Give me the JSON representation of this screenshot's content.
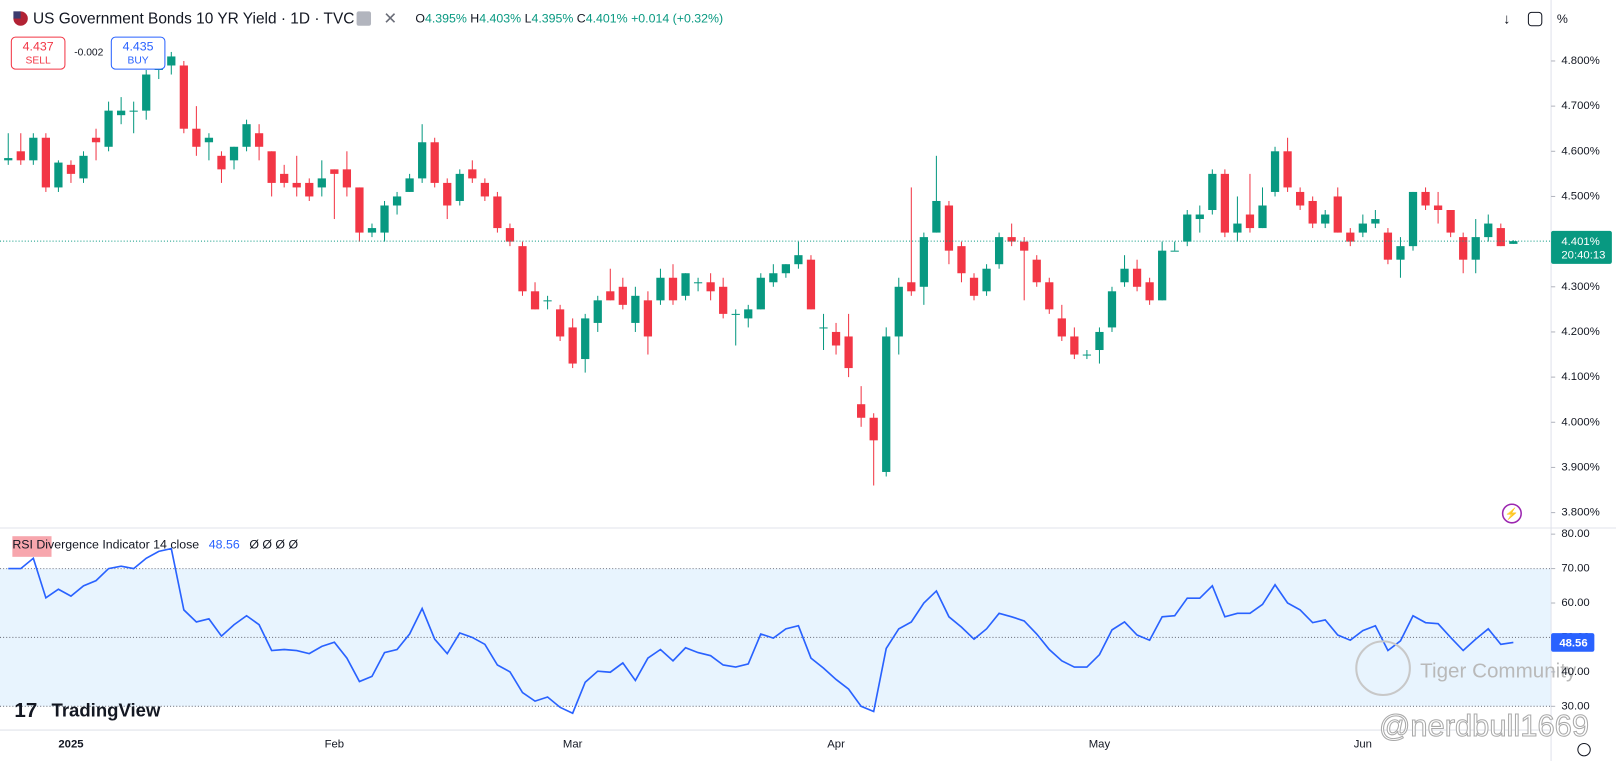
{
  "header": {
    "title": "US Government Bonds 10 YR Yield · 1D · TVC",
    "ohlc": [
      {
        "label": "O",
        "value": "4.395%"
      },
      {
        "label": "H",
        "value": "4.403%"
      },
      {
        "label": "L",
        "value": "4.395%"
      },
      {
        "label": "C",
        "value": "4.401%"
      }
    ],
    "change": "+0.014 (+0.32%)",
    "percent_button": "%"
  },
  "trade": {
    "sell_price": "4.437",
    "sell": "SELL",
    "spread": "-0.002",
    "buy_price": "4.435",
    "buy": "BUY"
  },
  "last_price_label": "4.401%",
  "countdown": "20:40:13",
  "watermarks": {
    "logo": "TradingView",
    "community": "Tiger Community",
    "user": "@nerdbull1669"
  },
  "chart_data": [
    {
      "type": "candlestick",
      "up_color": "#089981",
      "down_color": "#f23645",
      "categories": [
        null,
        null,
        null,
        null,
        null,
        "2025",
        null,
        null,
        null,
        null,
        null,
        null,
        null,
        null,
        null,
        null,
        null,
        null,
        null,
        null,
        null,
        null,
        null,
        null,
        null,
        null,
        "Feb",
        null,
        null,
        null,
        null,
        null,
        null,
        null,
        null,
        null,
        null,
        null,
        null,
        null,
        null,
        null,
        null,
        null,
        null,
        "Mar",
        null,
        null,
        null,
        null,
        null,
        null,
        null,
        null,
        null,
        null,
        null,
        null,
        null,
        null,
        null,
        null,
        null,
        null,
        null,
        null,
        "Apr",
        null,
        null,
        null,
        null,
        null,
        null,
        null,
        null,
        null,
        null,
        null,
        null,
        null,
        null,
        null,
        null,
        null,
        null,
        null,
        null,
        "May",
        null,
        null,
        null,
        null,
        null,
        null,
        null,
        null,
        null,
        null,
        null,
        null,
        null,
        null,
        null,
        null,
        null,
        null,
        null,
        null,
        "Jun",
        null,
        null,
        null,
        null,
        null,
        null,
        null,
        null,
        null,
        null,
        null,
        null
      ],
      "open": [
        4.58,
        4.6,
        4.58,
        4.63,
        4.52,
        4.57,
        4.54,
        4.63,
        4.61,
        4.68,
        4.69,
        4.69,
        4.78,
        4.79,
        4.79,
        4.65,
        4.62,
        4.59,
        4.58,
        4.61,
        4.64,
        4.6,
        4.55,
        4.53,
        4.53,
        4.52,
        4.56,
        4.56,
        4.52,
        4.42,
        4.42,
        4.48,
        4.51,
        4.54,
        4.62,
        4.53,
        4.49,
        4.56,
        4.53,
        4.5,
        4.43,
        4.39,
        4.29,
        4.27,
        4.25,
        4.21,
        4.14,
        4.22,
        4.29,
        4.3,
        4.22,
        4.27,
        4.27,
        4.32,
        4.28,
        4.31,
        4.31,
        4.3,
        4.24,
        4.23,
        4.25,
        4.31,
        4.33,
        4.35,
        4.36,
        4.21,
        4.2,
        4.19,
        4.04,
        4.01,
        3.89,
        4.19,
        4.31,
        4.3,
        4.42,
        4.48,
        4.39,
        4.32,
        4.29,
        4.35,
        4.41,
        4.4,
        4.36,
        4.31,
        4.23,
        4.19,
        4.15,
        4.16,
        4.21,
        4.31,
        4.34,
        4.31,
        4.27,
        4.38,
        4.4,
        4.45,
        4.47,
        4.55,
        4.42,
        4.46,
        4.43,
        4.51,
        4.6,
        4.51,
        4.49,
        4.44,
        4.5,
        4.42,
        4.42,
        4.44,
        4.42,
        4.36,
        4.39,
        4.51,
        4.48,
        4.47,
        4.41,
        4.36,
        4.41,
        4.43,
        4.395
      ],
      "high": [
        4.64,
        4.64,
        4.64,
        4.64,
        4.58,
        4.58,
        4.6,
        4.65,
        4.71,
        4.72,
        4.71,
        4.78,
        4.8,
        4.82,
        4.8,
        4.7,
        4.64,
        4.6,
        4.61,
        4.67,
        4.66,
        4.6,
        4.57,
        4.59,
        4.54,
        4.58,
        4.56,
        4.6,
        4.52,
        4.44,
        4.49,
        4.51,
        4.55,
        4.66,
        4.63,
        4.54,
        4.56,
        4.58,
        4.54,
        4.51,
        4.44,
        4.4,
        4.31,
        4.28,
        4.26,
        4.23,
        4.24,
        4.28,
        4.34,
        4.32,
        4.3,
        4.29,
        4.34,
        4.35,
        4.33,
        4.32,
        4.33,
        4.32,
        4.25,
        4.26,
        4.33,
        4.35,
        4.35,
        4.4,
        4.37,
        4.24,
        4.22,
        4.24,
        4.08,
        4.02,
        4.21,
        4.32,
        4.52,
        4.42,
        4.59,
        4.49,
        4.4,
        4.33,
        4.35,
        4.42,
        4.44,
        4.41,
        4.37,
        4.32,
        4.26,
        4.21,
        4.16,
        4.21,
        4.3,
        4.37,
        4.36,
        4.32,
        4.4,
        4.4,
        4.47,
        4.48,
        4.56,
        4.56,
        4.5,
        4.55,
        4.52,
        4.61,
        4.63,
        4.52,
        4.5,
        4.47,
        4.52,
        4.43,
        4.46,
        4.47,
        4.43,
        4.41,
        4.51,
        4.52,
        4.51,
        4.47,
        4.42,
        4.45,
        4.46,
        4.44,
        4.403
      ],
      "low": [
        4.57,
        4.57,
        4.57,
        4.51,
        4.51,
        4.53,
        4.53,
        4.58,
        4.6,
        4.66,
        4.64,
        4.67,
        4.76,
        4.77,
        4.64,
        4.59,
        4.58,
        4.53,
        4.56,
        4.6,
        4.58,
        4.5,
        4.52,
        4.5,
        4.49,
        4.5,
        4.45,
        4.5,
        4.4,
        4.41,
        4.4,
        4.46,
        4.51,
        4.53,
        4.52,
        4.45,
        4.48,
        4.53,
        4.49,
        4.42,
        4.39,
        4.28,
        4.25,
        4.25,
        4.18,
        4.12,
        4.11,
        4.2,
        4.27,
        4.25,
        4.2,
        4.15,
        4.26,
        4.26,
        4.27,
        4.29,
        4.27,
        4.23,
        4.17,
        4.21,
        4.25,
        4.3,
        4.32,
        4.34,
        4.25,
        4.16,
        4.15,
        4.1,
        3.99,
        3.86,
        3.88,
        4.15,
        4.28,
        4.26,
        4.42,
        4.35,
        4.31,
        4.27,
        4.28,
        4.34,
        4.39,
        4.27,
        4.3,
        4.24,
        4.18,
        4.14,
        4.14,
        4.13,
        4.2,
        4.3,
        4.29,
        4.26,
        4.27,
        4.38,
        4.39,
        4.42,
        4.46,
        4.41,
        4.4,
        4.42,
        4.43,
        4.5,
        4.51,
        4.47,
        4.43,
        4.43,
        4.42,
        4.39,
        4.41,
        4.43,
        4.35,
        4.32,
        4.38,
        4.47,
        4.44,
        4.41,
        4.33,
        4.33,
        4.4,
        4.39,
        4.395
      ],
      "close": [
        4.585,
        4.58,
        4.63,
        4.52,
        4.575,
        4.55,
        4.59,
        4.62,
        4.69,
        4.69,
        4.69,
        4.77,
        4.8,
        4.81,
        4.65,
        4.61,
        4.63,
        4.56,
        4.61,
        4.66,
        4.61,
        4.53,
        4.53,
        4.52,
        4.5,
        4.54,
        4.55,
        4.52,
        4.42,
        4.43,
        4.48,
        4.5,
        4.54,
        4.62,
        4.53,
        4.48,
        4.55,
        4.54,
        4.5,
        4.43,
        4.4,
        4.29,
        4.25,
        4.27,
        4.19,
        4.13,
        4.23,
        4.27,
        4.27,
        4.26,
        4.28,
        4.19,
        4.32,
        4.27,
        4.33,
        4.31,
        4.29,
        4.24,
        4.24,
        4.25,
        4.32,
        4.33,
        4.35,
        4.37,
        4.25,
        4.21,
        4.17,
        4.12,
        4.01,
        3.96,
        4.19,
        4.3,
        4.29,
        4.41,
        4.49,
        4.38,
        4.33,
        4.28,
        4.34,
        4.41,
        4.4,
        4.38,
        4.31,
        4.25,
        4.19,
        4.15,
        4.15,
        4.2,
        4.29,
        4.34,
        4.3,
        4.27,
        4.38,
        4.38,
        4.46,
        4.46,
        4.55,
        4.42,
        4.44,
        4.43,
        4.48,
        4.6,
        4.52,
        4.48,
        4.44,
        4.46,
        4.42,
        4.4,
        4.44,
        4.45,
        4.36,
        4.39,
        4.51,
        4.48,
        4.47,
        4.42,
        4.36,
        4.41,
        4.44,
        4.39,
        4.401
      ],
      "ylim": [
        3.766,
        4.935
      ],
      "yticks": [
        {
          "value": 4.8,
          "label": "4.800%"
        },
        {
          "value": 4.7,
          "label": "4.700%"
        },
        {
          "value": 4.6,
          "label": "4.600%"
        },
        {
          "value": 4.5,
          "label": "4.500%"
        },
        {
          "value": 4.4,
          "label": "4.400%"
        },
        {
          "value": 4.3,
          "label": "4.300%"
        },
        {
          "value": 4.2,
          "label": "4.200%"
        },
        {
          "value": 4.1,
          "label": "4.100%"
        },
        {
          "value": 4.0,
          "label": "4.000%"
        },
        {
          "value": 3.9,
          "label": "3.900%"
        },
        {
          "value": 3.8,
          "label": "3.800%"
        }
      ]
    },
    {
      "type": "line",
      "legend_extras": "Ø Ø Ø Ø",
      "series": [
        {
          "name": "RSI Divergence Indicator 14 close",
          "color": "#2962ff",
          "values": [
            70,
            70,
            73,
            61.5,
            64,
            62,
            65,
            66.5,
            70,
            70.7,
            70,
            73,
            75,
            75.8,
            58,
            54.5,
            55.4,
            50.4,
            53.7,
            56.3,
            53.7,
            46.2,
            46.5,
            46.2,
            45.3,
            47.4,
            48.6,
            44,
            37.2,
            38.7,
            45.6,
            46.5,
            51,
            58.4,
            49.5,
            45.3,
            51.3,
            50,
            48,
            42,
            40,
            34,
            31.5,
            32.7,
            29.7,
            28,
            37,
            40.2,
            39.9,
            42.6,
            37.5,
            44,
            46.5,
            43.2,
            47,
            45.6,
            44.7,
            42,
            41.4,
            42.3,
            51,
            49.8,
            52.5,
            53.4,
            44,
            41.1,
            37.8,
            35,
            30,
            28.5,
            46.8,
            52.5,
            54.5,
            60,
            63.5,
            56,
            53,
            49.5,
            52.5,
            57,
            56,
            54.8,
            51,
            46.5,
            43.2,
            41.4,
            41.4,
            45,
            52.2,
            54.5,
            50.7,
            49.2,
            56,
            56.3,
            61.4,
            61.4,
            65,
            56,
            57,
            57,
            59.6,
            65.3,
            60,
            58,
            54.3,
            55.1,
            50.7,
            49.2,
            52,
            53.4,
            46.2,
            49,
            56.3,
            54.3,
            54,
            50,
            46.2,
            49.5,
            52.5,
            48,
            48.56
          ]
        }
      ],
      "band": [
        30,
        70
      ],
      "middle_level": 50,
      "band_color": "#2196f3",
      "ylim": [
        24,
        81.8
      ],
      "yticks": [
        {
          "value": 80,
          "label": "80.00"
        },
        {
          "value": 70,
          "label": "70.00"
        },
        {
          "value": 60,
          "label": "60.00"
        },
        {
          "value": 50,
          "label": "50.00"
        },
        {
          "value": 40,
          "label": "40.00"
        },
        {
          "value": 30,
          "label": "30.00"
        }
      ]
    }
  ]
}
